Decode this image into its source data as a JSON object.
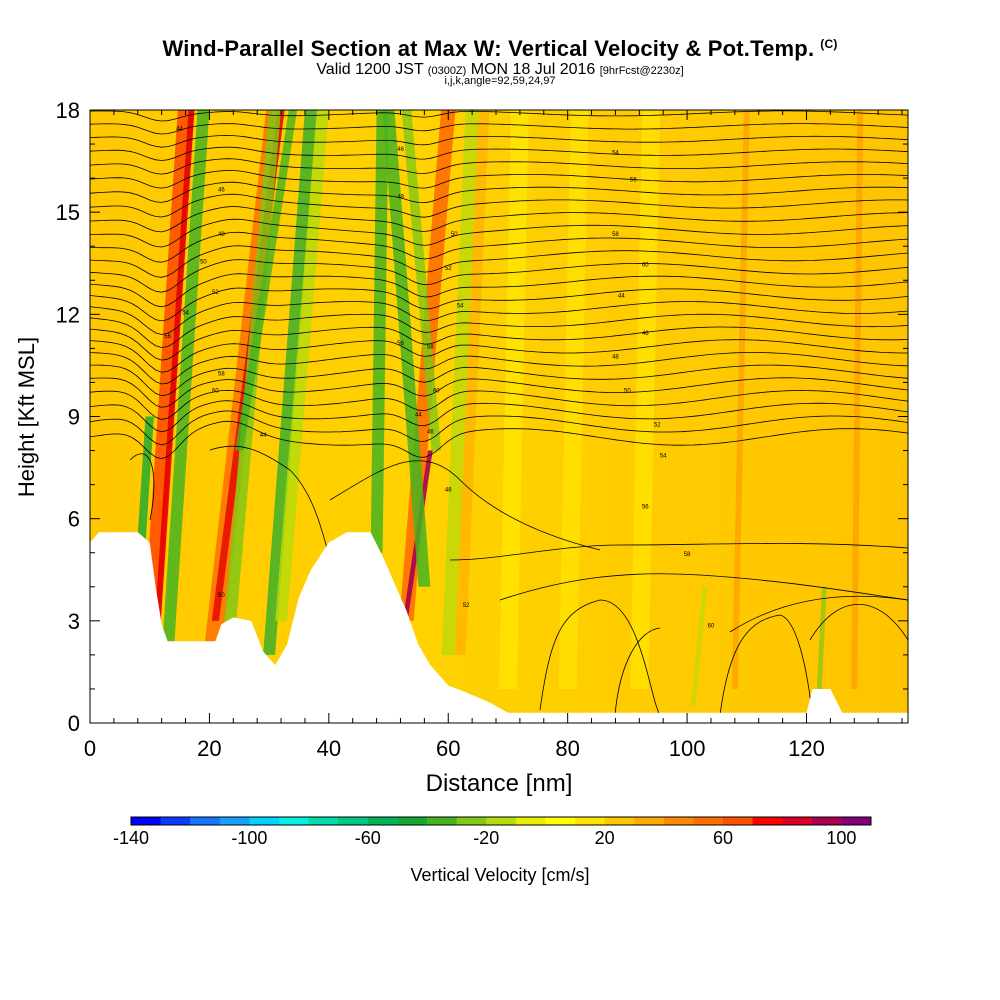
{
  "chart_data": {
    "type": "heatmap",
    "title": "Wind-Parallel Section at Max W: Vertical Velocity & Pot.Temp.",
    "title_mark": "(C)",
    "subtitle_main_1": "Valid 1200 JST",
    "subtitle_utc": "(0300Z)",
    "subtitle_main_2": "MON 18 Jul 2016",
    "subtitle_forecast": "[9hrFcst@2230z]",
    "subtitle_indices": "i,j,k,angle=92,59,24,97",
    "xlabel": "Distance [nm]",
    "ylabel": "Height [Kft MSL]",
    "xlim": [
      0,
      137
    ],
    "ylim": [
      0,
      18
    ],
    "xticks": [
      "0",
      "20",
      "40",
      "60",
      "80",
      "100",
      "120"
    ],
    "yticks": [
      "0",
      "3",
      "6",
      "9",
      "12",
      "15",
      "18"
    ],
    "colorbar": {
      "label": "Vertical Velocity [cm/s]",
      "range": [
        -140,
        110
      ],
      "step": 10,
      "tick_labels": [
        "-140",
        "-100",
        "-60",
        "-20",
        "20",
        "60",
        "100"
      ],
      "colors": [
        "#0000ff",
        "#0a3cff",
        "#1478ff",
        "#14a0ff",
        "#00d2ff",
        "#00f0e6",
        "#00dcaa",
        "#00c882",
        "#00b45a",
        "#14aa32",
        "#46b41e",
        "#82c814",
        "#b4dc0a",
        "#e6f000",
        "#ffff00",
        "#ffe600",
        "#ffc800",
        "#ffaa00",
        "#ff8c00",
        "#ff6e00",
        "#ff5000",
        "#ff0000",
        "#dc0028",
        "#aa0050",
        "#820078"
      ]
    },
    "updraft_columns_nm": [
      11,
      21,
      30,
      53,
      57
    ],
    "downdraft_columns_nm": [
      13,
      24,
      32,
      49,
      59
    ],
    "isentrope_labels": [
      "44",
      "46",
      "48",
      "50",
      "52",
      "54",
      "56",
      "58",
      "60"
    ],
    "terrain": "white area shows terrain below the section"
  }
}
